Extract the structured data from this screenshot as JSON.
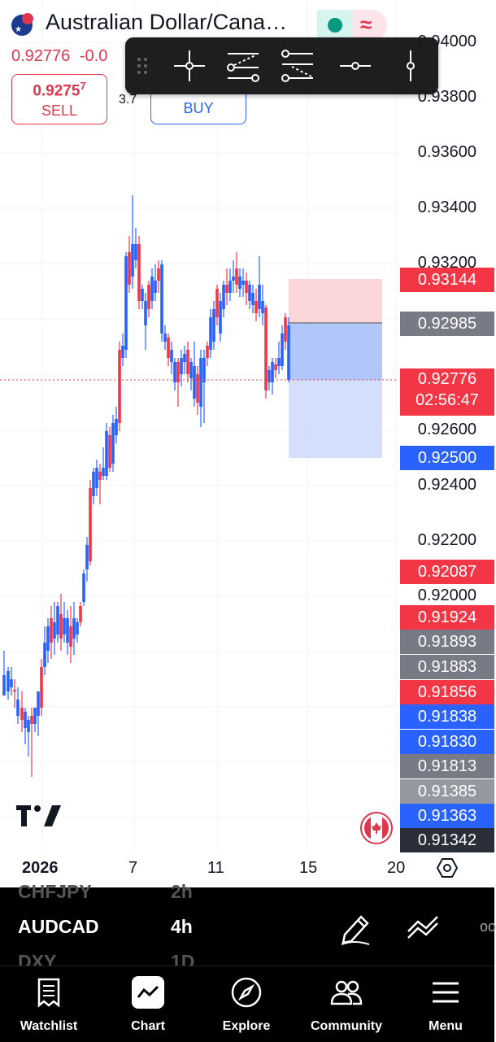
{
  "header": {
    "title": "Australian Dollar/Cana…",
    "price": "0.92776",
    "change": "-0.0"
  },
  "trade": {
    "sell_price": "0.9275",
    "sell_price_sup": "7",
    "sell_label": "SELL",
    "buy_label": "BUY",
    "spread": "3.7"
  },
  "toolbar": {
    "tools": [
      "crosshair-tool",
      "long-position-tool",
      "short-position-tool",
      "horizontal-ray-tool",
      "vertical-line-tool"
    ]
  },
  "price_axis": {
    "labels": [
      "0.94000",
      "0.93800",
      "0.93600",
      "0.93400",
      "0.93200",
      "0.92600",
      "0.92400",
      "0.92200",
      "0.92000"
    ]
  },
  "price_tags": [
    {
      "value": "0.93144",
      "color": "#f23645"
    },
    {
      "value": "0.92985",
      "color": "#787b86"
    },
    {
      "value": "0.92776",
      "sub": "02:56:47",
      "color": "#f23645"
    },
    {
      "value": "0.92500",
      "color": "#2962ff"
    },
    {
      "value": "0.92087",
      "color": "#f23645"
    },
    {
      "value": "0.91924",
      "color": "#f23645"
    },
    {
      "value": "0.91893",
      "color": "#787b86"
    },
    {
      "value": "0.91883",
      "color": "#787b86"
    },
    {
      "value": "0.91856",
      "color": "#f23645"
    },
    {
      "value": "0.91838",
      "color": "#2962ff"
    },
    {
      "value": "0.91830",
      "color": "#2962ff"
    },
    {
      "value": "0.91813",
      "color": "#787b86"
    },
    {
      "value": "0.91385",
      "color": "#9598a1"
    },
    {
      "value": "0.91363",
      "color": "#2962ff"
    },
    {
      "value": "0.91342",
      "color": "#2a2e39"
    }
  ],
  "time_axis": {
    "labels": [
      "2026",
      "7",
      "11",
      "15",
      "20"
    ]
  },
  "symbols": {
    "prev": {
      "symbol": "CHFJPY",
      "interval": "2h"
    },
    "current": {
      "symbol": "AUDCAD",
      "interval": "4h"
    },
    "next": {
      "symbol": "DXY",
      "interval": "1D"
    }
  },
  "nav": {
    "items": [
      {
        "label": "Watchlist"
      },
      {
        "label": "Chart"
      },
      {
        "label": "Explore"
      },
      {
        "label": "Community"
      },
      {
        "label": "Menu"
      }
    ]
  },
  "colors": {
    "up": "#2962ff",
    "down": "#f23645",
    "stop_zone": "#f9d1d5",
    "target_zone": "#bcd0fb"
  }
}
